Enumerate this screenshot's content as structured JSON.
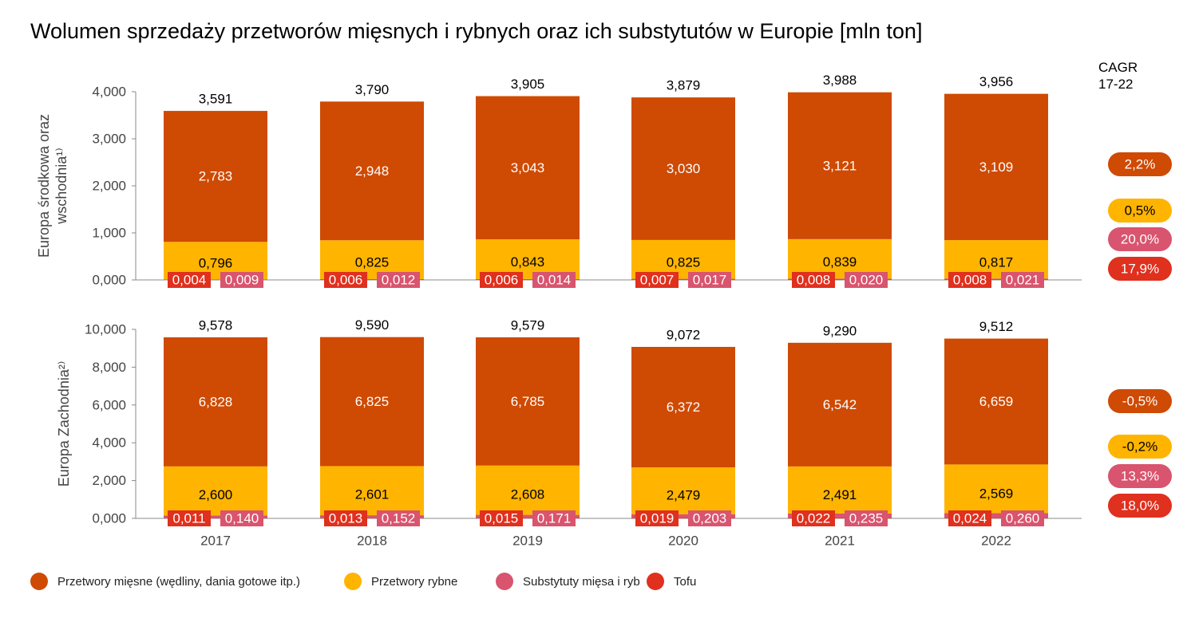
{
  "title": "Wolumen sprzedaży przetworów mięsnych i rybnych oraz ich substytutów w Europie [mln ton]",
  "cagr_title": "CAGR\n17-22",
  "colors": {
    "meat": "#cf4a02",
    "fish": "#ffb400",
    "subst": "#d9546e",
    "tofu": "#e0301e"
  },
  "legend": [
    {
      "key": "meat",
      "label": "Przetwory mięsne (wędliny, dania gotowe itp.)"
    },
    {
      "key": "fish",
      "label": "Przetwory rybne"
    },
    {
      "key": "subst",
      "label": "Substytuty mięsa i ryb"
    },
    {
      "key": "tofu",
      "label": "Tofu"
    }
  ],
  "chart_data": [
    {
      "type": "bar",
      "stacked": true,
      "ylabel": "Europa środkowa oraz wschodnia¹⁾",
      "ylim": [
        0,
        4
      ],
      "yticks": [
        "0,000",
        "1,000",
        "2,000",
        "3,000",
        "4,000"
      ],
      "categories": [
        "2017",
        "2018",
        "2019",
        "2020",
        "2021",
        "2022"
      ],
      "totals": [
        "3,591",
        "3,790",
        "3,905",
        "3,879",
        "3,988",
        "3,956"
      ],
      "series": {
        "tofu": [
          0.004,
          0.006,
          0.006,
          0.007,
          0.008,
          0.008
        ],
        "subst": [
          0.009,
          0.012,
          0.014,
          0.017,
          0.02,
          0.021
        ],
        "fish": [
          0.796,
          0.825,
          0.843,
          0.825,
          0.839,
          0.817
        ],
        "meat": [
          2.783,
          2.948,
          3.043,
          3.03,
          3.121,
          3.109
        ]
      },
      "labels": {
        "tofu": [
          "0,004",
          "0,006",
          "0,006",
          "0,007",
          "0,008",
          "0,008"
        ],
        "subst": [
          "0,009",
          "0,012",
          "0,014",
          "0,017",
          "0,020",
          "0,021"
        ],
        "fish": [
          "0,796",
          "0,825",
          "0,843",
          "0,825",
          "0,839",
          "0,817"
        ],
        "meat": [
          "2,783",
          "2,948",
          "3,043",
          "3,030",
          "3,121",
          "3,109"
        ]
      },
      "cagr": {
        "meat": "2,2%",
        "fish": "0,5%",
        "subst": "20,0%",
        "tofu": "17,9%"
      }
    },
    {
      "type": "bar",
      "stacked": true,
      "ylabel": "Europa Zachodnia²⁾",
      "ylim": [
        0,
        10
      ],
      "yticks": [
        "0,000",
        "2,000",
        "4,000",
        "6,000",
        "8,000",
        "10,000"
      ],
      "categories": [
        "2017",
        "2018",
        "2019",
        "2020",
        "2021",
        "2022"
      ],
      "totals": [
        "9,578",
        "9,590",
        "9,579",
        "9,072",
        "9,290",
        "9,512"
      ],
      "series": {
        "tofu": [
          0.011,
          0.013,
          0.015,
          0.019,
          0.022,
          0.024
        ],
        "subst": [
          0.14,
          0.152,
          0.171,
          0.203,
          0.235,
          0.26
        ],
        "fish": [
          2.6,
          2.601,
          2.608,
          2.479,
          2.491,
          2.569
        ],
        "meat": [
          6.828,
          6.825,
          6.785,
          6.372,
          6.542,
          6.659
        ]
      },
      "labels": {
        "tofu": [
          "0,011",
          "0,013",
          "0,015",
          "0,019",
          "0,022",
          "0,024"
        ],
        "subst": [
          "0,140",
          "0,152",
          "0,171",
          "0,203",
          "0,235",
          "0,260"
        ],
        "fish": [
          "2,600",
          "2,601",
          "2,608",
          "2,479",
          "2,491",
          "2,569"
        ],
        "meat": [
          "6,828",
          "6,825",
          "6,785",
          "6,372",
          "6,542",
          "6,659"
        ]
      },
      "cagr": {
        "meat": "-0,5%",
        "fish": "-0,2%",
        "subst": "13,3%",
        "tofu": "18,0%"
      }
    }
  ]
}
